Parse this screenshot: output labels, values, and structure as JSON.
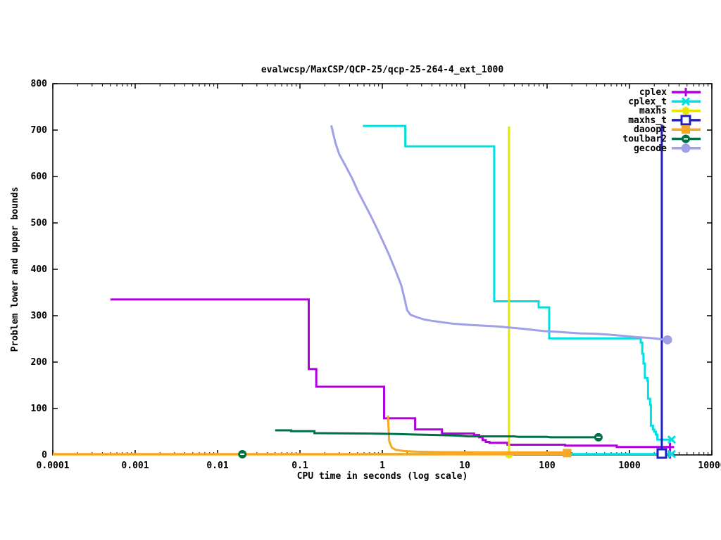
{
  "chart_data": {
    "type": "line",
    "title": "evalwcsp/MaxCSP/QCP-25/qcp-25-264-4_ext_1000",
    "xlabel": "CPU time in seconds (log scale)",
    "ylabel": "Problem lower and upper bounds",
    "x_scale": "log",
    "xlim": [
      0.0001,
      10000
    ],
    "ylim": [
      0,
      800
    ],
    "x_ticks": [
      {
        "v": 0.0001,
        "label": "0.0001"
      },
      {
        "v": 0.001,
        "label": "0.001"
      },
      {
        "v": 0.01,
        "label": "0.01"
      },
      {
        "v": 0.1,
        "label": "0.1"
      },
      {
        "v": 1,
        "label": "1"
      },
      {
        "v": 10,
        "label": "10"
      },
      {
        "v": 100,
        "label": "100"
      },
      {
        "v": 1000,
        "label": "1000"
      },
      {
        "v": 10000,
        "label": "10000"
      }
    ],
    "y_ticks": [
      "0",
      "100",
      "200",
      "300",
      "400",
      "500",
      "600",
      "700",
      "800"
    ],
    "grid": false,
    "legend_position": "top-right-inside",
    "series": [
      {
        "name": "cplex",
        "color": "#b000e0",
        "marker": "plus",
        "segments": [
          [
            [
              0.0005,
              335
            ],
            [
              0.128,
              335
            ],
            [
              0.128,
              185
            ],
            [
              0.158,
              185
            ],
            [
              0.158,
              147
            ],
            [
              1.05,
              147
            ],
            [
              1.05,
              79
            ],
            [
              2.5,
              79
            ],
            [
              2.5,
              55
            ],
            [
              5.3,
              55
            ],
            [
              5.3,
              46
            ],
            [
              13,
              46
            ],
            [
              13,
              43
            ],
            [
              15,
              43
            ],
            [
              15,
              38
            ],
            [
              16.5,
              38
            ],
            [
              16.5,
              32
            ],
            [
              18,
              32
            ],
            [
              18,
              28
            ],
            [
              20,
              28
            ],
            [
              20,
              26
            ],
            [
              33,
              26
            ],
            [
              33,
              22
            ],
            [
              165,
              22
            ],
            [
              165,
              20
            ],
            [
              700,
              20
            ],
            [
              700,
              17
            ],
            [
              3100,
              17
            ]
          ],
          [
            [
              0.0005,
              1
            ],
            [
              3100,
              1
            ]
          ]
        ],
        "marker_points": [
          [
            3100,
            17
          ],
          [
            3100,
            1
          ]
        ]
      },
      {
        "name": "cplex_t",
        "color": "#00e0e0",
        "marker": "cross",
        "segments": [
          [
            [
              0.58,
              709
            ],
            [
              1.9,
              709
            ],
            [
              1.9,
              665
            ],
            [
              22.8,
              665
            ],
            [
              22.8,
              331
            ],
            [
              79,
              331
            ],
            [
              79,
              318
            ],
            [
              106,
              318
            ],
            [
              106,
              251
            ],
            [
              1370,
              251
            ],
            [
              1370,
              242
            ],
            [
              1430,
              242
            ],
            [
              1430,
              218
            ],
            [
              1480,
              218
            ],
            [
              1480,
              197
            ],
            [
              1540,
              197
            ],
            [
              1540,
              166
            ],
            [
              1650,
              166
            ],
            [
              1650,
              160
            ],
            [
              1680,
              160
            ],
            [
              1680,
              121
            ],
            [
              1780,
              121
            ],
            [
              1780,
              108
            ],
            [
              1820,
              108
            ],
            [
              1820,
              63
            ],
            [
              1930,
              63
            ],
            [
              1930,
              55
            ],
            [
              2000,
              55
            ],
            [
              2000,
              50
            ],
            [
              2090,
              50
            ],
            [
              2090,
              44
            ],
            [
              2180,
              44
            ],
            [
              2180,
              33
            ],
            [
              3250,
              33
            ]
          ],
          [
            [
              0.58,
              2
            ],
            [
              3250,
              2
            ]
          ]
        ],
        "marker_points": [
          [
            3250,
            33
          ],
          [
            3250,
            2
          ]
        ]
      },
      {
        "name": "maxhs",
        "color": "#e6e600",
        "marker": "star",
        "segments": [
          [
            [
              34.5,
              0
            ],
            [
              34.5,
              708
            ]
          ],
          [
            [
              0.0001,
              0.5
            ],
            [
              34.5,
              0.5
            ]
          ]
        ],
        "marker_points": [
          [
            34.5,
            1
          ]
        ]
      },
      {
        "name": "maxhs_t",
        "color": "#2020c0",
        "marker": "square-open",
        "segments": [
          [
            [
              2470,
              0
            ],
            [
              2470,
              712
            ]
          ]
        ],
        "marker_points": [
          [
            2470,
            3
          ]
        ]
      },
      {
        "name": "daoopt",
        "color": "#f5a828",
        "marker": "square",
        "segments": [
          [
            [
              1.17,
              85
            ],
            [
              1.21,
              30
            ],
            [
              1.3,
              16
            ],
            [
              1.45,
              11
            ],
            [
              1.8,
              8.5
            ],
            [
              2.6,
              7
            ],
            [
              5,
              6
            ],
            [
              20,
              5.5
            ],
            [
              175,
              5.5
            ]
          ],
          [
            [
              0.0001,
              2
            ],
            [
              175,
              2
            ]
          ]
        ],
        "marker_points": [
          [
            175,
            4
          ]
        ]
      },
      {
        "name": "toulbar2",
        "color": "#007045",
        "marker": "circle-slot",
        "segments": [
          [
            [
              0.05,
              53
            ],
            [
              0.078,
              53
            ],
            [
              0.078,
              51
            ],
            [
              0.15,
              51
            ],
            [
              0.15,
              47
            ],
            [
              0.7,
              46
            ],
            [
              1.5,
              45
            ],
            [
              2.5,
              44
            ],
            [
              4.5,
              43
            ],
            [
              7,
              42
            ],
            [
              9,
              41
            ],
            [
              11,
              40
            ],
            [
              40,
              40
            ],
            [
              45,
              39
            ],
            [
              100,
              39
            ],
            [
              110,
              38
            ],
            [
              420,
              38
            ]
          ]
        ],
        "marker_points": [
          [
            0.02,
            1.5
          ],
          [
            420,
            38
          ]
        ]
      },
      {
        "name": "gecode",
        "color": "#a0a0e8",
        "marker": "circle",
        "segments": [
          [
            [
              0.24,
              710
            ],
            [
              0.27,
              672
            ],
            [
              0.3,
              648
            ],
            [
              0.36,
              622
            ],
            [
              0.43,
              596
            ],
            [
              0.5,
              570
            ],
            [
              0.6,
              543
            ],
            [
              0.72,
              516
            ],
            [
              0.85,
              490
            ],
            [
              1.0,
              463
            ],
            [
              1.2,
              432
            ],
            [
              1.45,
              397
            ],
            [
              1.7,
              365
            ],
            [
              1.9,
              330
            ],
            [
              2.0,
              312
            ],
            [
              2.2,
              302
            ],
            [
              2.6,
              297
            ],
            [
              3.2,
              292
            ],
            [
              4,
              289
            ],
            [
              7,
              283
            ],
            [
              12,
              280
            ],
            [
              25,
              277
            ],
            [
              50,
              272
            ],
            [
              90,
              267
            ],
            [
              140,
              265
            ],
            [
              250,
              262
            ],
            [
              400,
              261
            ],
            [
              600,
              259
            ],
            [
              900,
              256
            ],
            [
              1200,
              254
            ],
            [
              1800,
              252
            ],
            [
              2300,
              250
            ],
            [
              2500,
              249
            ],
            [
              2900,
              248
            ]
          ]
        ],
        "marker_points": [
          [
            2900,
            248
          ]
        ]
      }
    ]
  },
  "colors": {
    "text": "#000000",
    "axis": "#000000",
    "background": "#ffffff"
  }
}
